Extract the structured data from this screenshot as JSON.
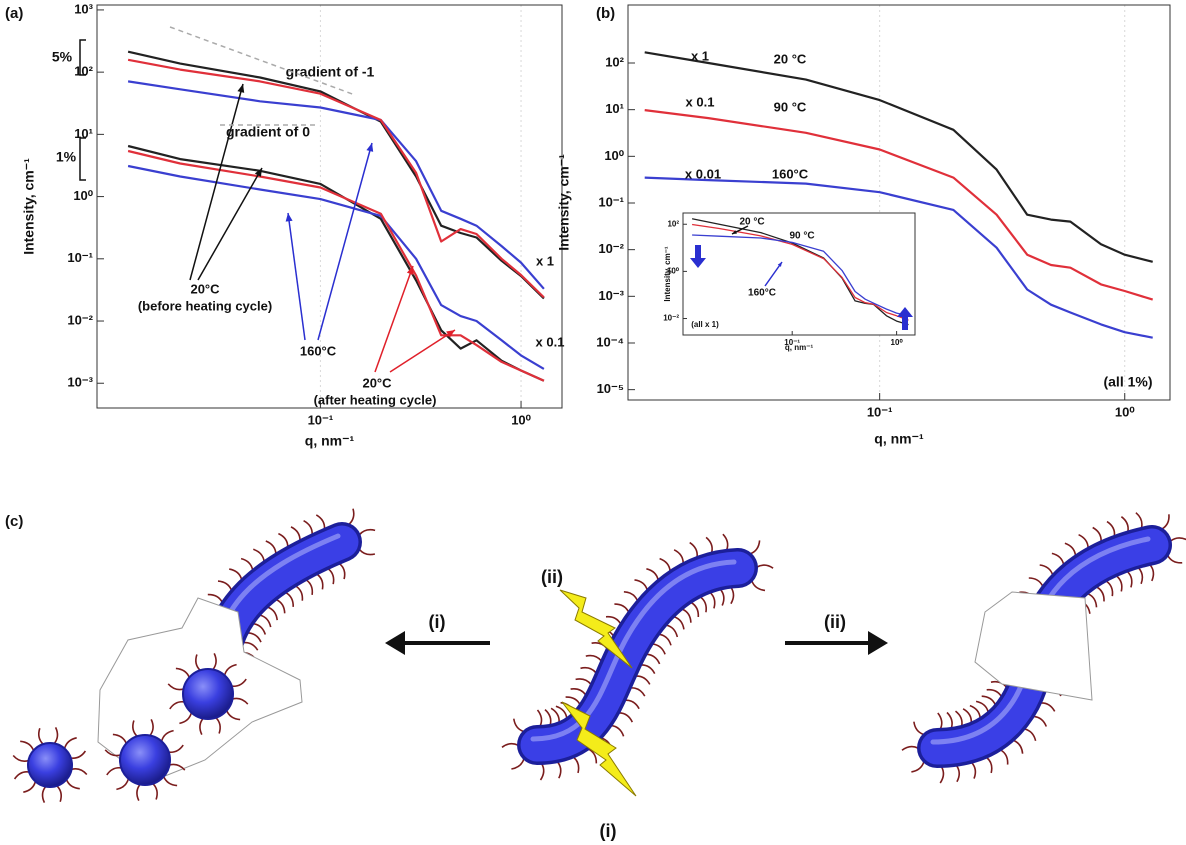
{
  "chart_data": [
    {
      "type": "line",
      "panel_label": "(a)",
      "xlabel": "q, nm⁻¹",
      "ylabel": "Intensity, cm⁻¹",
      "log_x": true,
      "log_y": true,
      "grid": true,
      "xlim": [
        0.0077,
        1.6
      ],
      "ylim": [
        0.0004,
        1200
      ],
      "xticks": [
        {
          "value": 0.1,
          "label": "10⁻¹"
        },
        {
          "value": 1,
          "label": "10⁰"
        }
      ],
      "yticks": [
        {
          "value": 0.001,
          "label": "10⁻³"
        },
        {
          "value": 0.01,
          "label": "10⁻²"
        },
        {
          "value": 0.1,
          "label": "10⁻¹"
        },
        {
          "value": 1,
          "label": "10⁰"
        },
        {
          "value": 10,
          "label": "10¹"
        },
        {
          "value": 100,
          "label": "10²"
        },
        {
          "value": 1000,
          "label": "10³"
        }
      ],
      "x": [
        0.011,
        0.02,
        0.05,
        0.1,
        0.2,
        0.3,
        0.4,
        0.5,
        0.6,
        0.8,
        1.0,
        1.3
      ],
      "series": [
        {
          "color": "#222222",
          "values": [
            213,
            137,
            82,
            49,
            16,
            2.1,
            0.34,
            0.26,
            0.22,
            0.093,
            0.053,
            0.023
          ]
        },
        {
          "color": "#3a3fd0",
          "values": [
            71,
            53,
            34,
            27,
            17,
            3.7,
            0.59,
            0.44,
            0.34,
            0.16,
            0.087,
            0.033
          ]
        },
        {
          "color": "#e0303a",
          "values": [
            158,
            110,
            71,
            45,
            17,
            2.4,
            0.19,
            0.3,
            0.25,
            0.1,
            0.055,
            0.024
          ]
        },
        {
          "color": "#222222",
          "values": [
            6.5,
            4.0,
            2.6,
            1.6,
            0.44,
            0.045,
            0.0071,
            0.0036,
            0.0049,
            0.0023,
            0.0016,
            0.0011
          ]
        },
        {
          "color": "#3a3fd0",
          "values": [
            3.1,
            2.1,
            1.3,
            0.91,
            0.49,
            0.1,
            0.018,
            0.012,
            0.01,
            0.0049,
            0.0028,
            0.0017
          ]
        },
        {
          "color": "#e0303a",
          "values": [
            5.4,
            3.4,
            2.1,
            1.4,
            0.53,
            0.054,
            0.0059,
            0.0059,
            0.0041,
            0.0022,
            0.0016,
            0.0011
          ]
        }
      ],
      "annotations": [
        {
          "text": "5%",
          "color": "#111111"
        },
        {
          "text": "1%",
          "color": "#111111"
        },
        {
          "text": "gradient of -1",
          "color": "#9a9a9a"
        },
        {
          "text": "gradient of 0",
          "color": "#9a9a9a"
        },
        {
          "text": "20°C",
          "color": "#111111"
        },
        {
          "text": "(before heating cycle)",
          "color": "#111111"
        },
        {
          "text": "160°C",
          "color": "#2a2fd0"
        },
        {
          "text": "20°C",
          "color": "#e0202a"
        },
        {
          "text": "(after heating cycle)",
          "color": "#e0202a"
        },
        {
          "text": "x 1",
          "color": "#111111"
        },
        {
          "text": "x 0.1",
          "color": "#111111"
        }
      ]
    },
    {
      "type": "line",
      "panel_label": "(b)",
      "xlabel": "q, nm⁻¹",
      "ylabel": "Intensity, cm⁻¹",
      "log_x": true,
      "log_y": true,
      "grid": true,
      "xlim": [
        0.0094,
        1.53
      ],
      "ylim": [
        6e-06,
        1750
      ],
      "xticks": [
        {
          "value": 0.1,
          "label": "10⁻¹"
        },
        {
          "value": 1,
          "label": "10⁰"
        }
      ],
      "yticks": [
        {
          "value": 1e-05,
          "label": "10⁻⁵"
        },
        {
          "value": 0.0001,
          "label": "10⁻⁴"
        },
        {
          "value": 0.001,
          "label": "10⁻³"
        },
        {
          "value": 0.01,
          "label": "10⁻²"
        },
        {
          "value": 0.1,
          "label": "10⁻¹"
        },
        {
          "value": 1,
          "label": "10⁰"
        },
        {
          "value": 10,
          "label": "10¹"
        },
        {
          "value": 100,
          "label": "10²"
        }
      ],
      "x": [
        0.011,
        0.02,
        0.05,
        0.1,
        0.2,
        0.3,
        0.4,
        0.5,
        0.6,
        0.8,
        1.0,
        1.3
      ],
      "series": [
        {
          "color": "#222222",
          "values": [
            170,
            100,
            44,
            16,
            3.7,
            0.52,
            0.056,
            0.044,
            0.04,
            0.013,
            0.0078,
            0.0055
          ]
        },
        {
          "color": "#e0303a",
          "values": [
            9.8,
            6.6,
            3.2,
            1.4,
            0.35,
            0.056,
            0.0078,
            0.0047,
            0.0041,
            0.0018,
            0.0013,
            0.00085
          ]
        },
        {
          "color": "#3a3fd0",
          "values": [
            0.35,
            0.31,
            0.26,
            0.17,
            0.071,
            0.011,
            0.0014,
            0.00066,
            0.00045,
            0.00025,
            0.00017,
            0.00013
          ]
        }
      ],
      "annotations": [
        {
          "text": "x 1",
          "color": "#111111"
        },
        {
          "text": "20 °C",
          "color": "#111111"
        },
        {
          "text": "x 0.1",
          "color": "#e0202a"
        },
        {
          "text": "90 °C",
          "color": "#e0202a"
        },
        {
          "text": "x 0.01",
          "color": "#2a2fd0"
        },
        {
          "text": "160°C",
          "color": "#2a2fd0"
        },
        {
          "text": "(all 1%)",
          "color": "#111111"
        }
      ]
    },
    {
      "type": "line",
      "xlabel": "q, nm⁻¹",
      "ylabel": "Intensity, cm⁻¹",
      "log_x": true,
      "log_y": true,
      "grid": false,
      "xlim": [
        0.009,
        1.5
      ],
      "ylim": [
        0.002,
        300
      ],
      "xticks": [
        {
          "value": 0.1,
          "label": "10⁻¹"
        },
        {
          "value": 1,
          "label": "10⁰"
        }
      ],
      "yticks": [
        {
          "value": 0.01,
          "label": "10⁻²"
        },
        {
          "value": 1,
          "label": "10⁰"
        },
        {
          "value": 100,
          "label": "10²"
        }
      ],
      "x": [
        0.011,
        0.02,
        0.05,
        0.1,
        0.2,
        0.3,
        0.4,
        0.5,
        0.6,
        0.8,
        1.0,
        1.3
      ],
      "series": [
        {
          "color": "#222222",
          "values": [
            170,
            100,
            44,
            16,
            3.7,
            0.52,
            0.056,
            0.044,
            0.04,
            0.013,
            0.0078,
            0.0055
          ]
        },
        {
          "color": "#e0303a",
          "values": [
            98,
            66,
            32,
            14,
            3.5,
            0.56,
            0.078,
            0.047,
            0.041,
            0.018,
            0.013,
            0.0085
          ]
        },
        {
          "color": "#3a3fd0",
          "values": [
            35,
            31,
            26,
            17,
            7.1,
            1.1,
            0.14,
            0.066,
            0.045,
            0.025,
            0.017,
            0.013
          ]
        }
      ],
      "annotations": [
        {
          "text": "20 °C",
          "color": "#111111"
        },
        {
          "text": "90 °C",
          "color": "#e0202a"
        },
        {
          "text": "160°C",
          "color": "#2a2fd0"
        },
        {
          "text": "(all x 1)",
          "color": "#111111"
        }
      ]
    }
  ],
  "diagram": {
    "panel_label": "(c)",
    "labels": [
      "(i)",
      "(ii)",
      "(ii)",
      "(i)"
    ]
  }
}
